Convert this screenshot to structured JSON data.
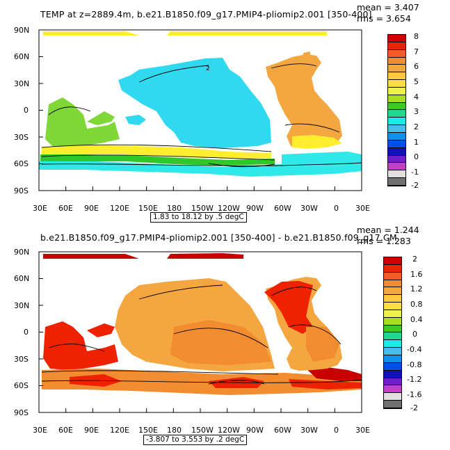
{
  "panels": [
    {
      "title": "TEMP at z=2889.4m, b.e21.B1850.f09_g17.PMIP4-pliomip2.001 [350-400]",
      "mean_text": "mean = 3.407",
      "rms_text": "rms = 3.654",
      "caption": "1.83 to 18.12 by .5 degC",
      "contour_label": "2",
      "lat_ticks": [
        "90N",
        "60N",
        "30N",
        "0",
        "30S",
        "60S",
        "90S"
      ],
      "lon_ticks": [
        "30E",
        "60E",
        "90E",
        "120E",
        "150E",
        "180",
        "150W",
        "120W",
        "90W",
        "60W",
        "30W",
        "0",
        "30E"
      ],
      "colorbar": {
        "labels": [
          "8",
          "7",
          "6",
          "5",
          "4",
          "3",
          "2",
          "1",
          "0",
          "-1",
          "-2"
        ],
        "colors": [
          "#cc0000",
          "#ee2200",
          "#f25c2a",
          "#f28c30",
          "#f4a640",
          "#ffc840",
          "#ffe040",
          "#f0f04a",
          "#a8dc28",
          "#40c828",
          "#20d890",
          "#20e8e8",
          "#40c0f0",
          "#1090e8",
          "#0050e8",
          "#1010c0",
          "#7020c8",
          "#c040c8",
          "#e0e0e0",
          "#707070"
        ]
      }
    },
    {
      "title": "b.e21.B1850.f09_g17.PMIP4-pliomip2.001 [350-400] - b.e21.B1850.f09_g17.CM",
      "mean_text": "mean = 1.244",
      "rms_text": "rms = 1.283",
      "caption": "-3.807 to 3.553 by .2 degC",
      "lat_ticks": [
        "90N",
        "60N",
        "30N",
        "0",
        "30S",
        "60S",
        "90S"
      ],
      "lon_ticks": [
        "30E",
        "60E",
        "90E",
        "120E",
        "150E",
        "180",
        "150W",
        "120W",
        "90W",
        "60W",
        "30W",
        "0",
        "30E"
      ],
      "colorbar": {
        "labels": [
          "2",
          "1.6",
          "1.2",
          "0.8",
          "0.4",
          "0",
          "-0.4",
          "-0.8",
          "-1.2",
          "-1.6",
          "-2"
        ],
        "colors": [
          "#c80000",
          "#ee2200",
          "#f25c2a",
          "#f28c30",
          "#f4a640",
          "#ffc840",
          "#ffe040",
          "#f0f04a",
          "#a8dc28",
          "#40c828",
          "#20d890",
          "#20e8e8",
          "#40c0f0",
          "#1090e8",
          "#0050e8",
          "#1010c0",
          "#7020c8",
          "#c040c8",
          "#e0e0e0",
          "#707070"
        ]
      }
    }
  ],
  "colors": {
    "top_blue": "#30d8f0",
    "top_lightblue": "#30e8e8",
    "top_green": "#80d838",
    "top_darkgreen": "#30c828",
    "top_yellow": "#ffee30",
    "top_orange": "#f4a640",
    "bot_orange": "#f4a640",
    "bot_red": "#ee2200",
    "bot_darkred": "#c80000"
  }
}
